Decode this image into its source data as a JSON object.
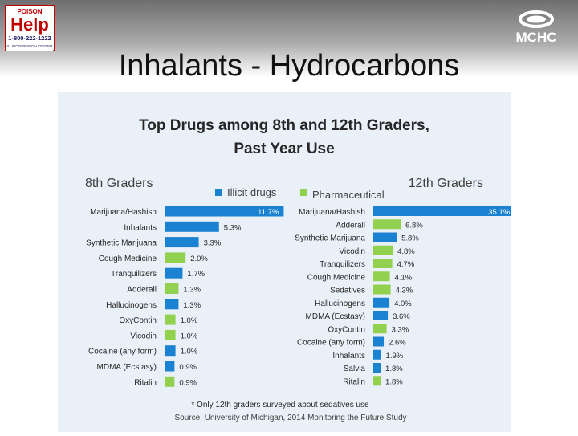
{
  "slide": {
    "title": "Inhalants - Hydrocarbons",
    "logo_left": {
      "line1": "POISON",
      "line2": "Help",
      "line3": "1-800-222-1222",
      "line4": "ILLINOIS POISON CENTER"
    },
    "logo_right": {
      "text": "MCHC"
    }
  },
  "colors": {
    "illicit": "#1b82d1",
    "pharmaceutical": "#92d050",
    "panel": "#eaf0f7"
  },
  "chart_data": {
    "type": "bar",
    "title_line1": "Top Drugs among 8th and 12th Graders,",
    "title_line2": "Past Year Use",
    "legend": [
      {
        "name": "Illicit drugs",
        "color": "#1b82d1"
      },
      {
        "name": "Pharmaceutical",
        "color": "#92d050"
      }
    ],
    "panels": [
      {
        "name": "8th Graders",
        "categories": [
          "Marijuana/Hashish",
          "Inhalants",
          "Synthetic Marijuana",
          "Cough Medicine",
          "Tranquilizers",
          "Adderall",
          "Hallucinogens",
          "OxyContin",
          "Vicodin",
          "Cocaine (any form)",
          "MDMA (Ecstasy)",
          "Ritalin"
        ],
        "values": [
          11.7,
          5.3,
          3.3,
          2.0,
          1.7,
          1.3,
          1.3,
          1.0,
          1.0,
          1.0,
          0.9,
          0.9
        ],
        "labels": [
          "11.7%",
          "5.3%",
          "3.3%",
          "2.0%",
          "1.7%",
          "1.3%",
          "1.3%",
          "1.0%",
          "1.0%",
          "1.0%",
          "0.9%",
          "0.9%"
        ],
        "kinds": [
          "illicit",
          "illicit",
          "illicit",
          "pharmaceutical",
          "illicit",
          "pharmaceutical",
          "illicit",
          "pharmaceutical",
          "pharmaceutical",
          "illicit",
          "illicit",
          "pharmaceutical"
        ]
      },
      {
        "name": "12th Graders",
        "categories": [
          "Marijuana/Hashish",
          "Adderall",
          "Synthetic Marijuana",
          "Vicodin",
          "Tranquilizers",
          "Cough Medicine",
          "Sedatives",
          "Hallucinogens",
          "MDMA (Ecstasy)",
          "OxyContin",
          "Cocaine (any form)",
          "Inhalants",
          "Salvia",
          "Ritalin"
        ],
        "values": [
          35.1,
          6.8,
          5.8,
          4.8,
          4.7,
          4.1,
          4.3,
          4.0,
          3.6,
          3.3,
          2.6,
          1.9,
          1.8,
          1.8
        ],
        "labels": [
          "35.1%",
          "6.8%",
          "5.8%",
          "4.8%",
          "4.7%",
          "4.1%",
          "4.3%",
          "4.0%",
          "3.6%",
          "3.3%",
          "2.6%",
          "1.9%",
          "1.8%",
          "1.8%"
        ],
        "kinds": [
          "illicit",
          "pharmaceutical",
          "illicit",
          "pharmaceutical",
          "pharmaceutical",
          "pharmaceutical",
          "pharmaceutical",
          "illicit",
          "illicit",
          "pharmaceutical",
          "illicit",
          "illicit",
          "illicit",
          "pharmaceutical"
        ]
      }
    ],
    "footnote": "* Only 12th graders surveyed about sedatives use",
    "source": "Source: University of Michigan, 2014 Monitoring the Future Study"
  }
}
